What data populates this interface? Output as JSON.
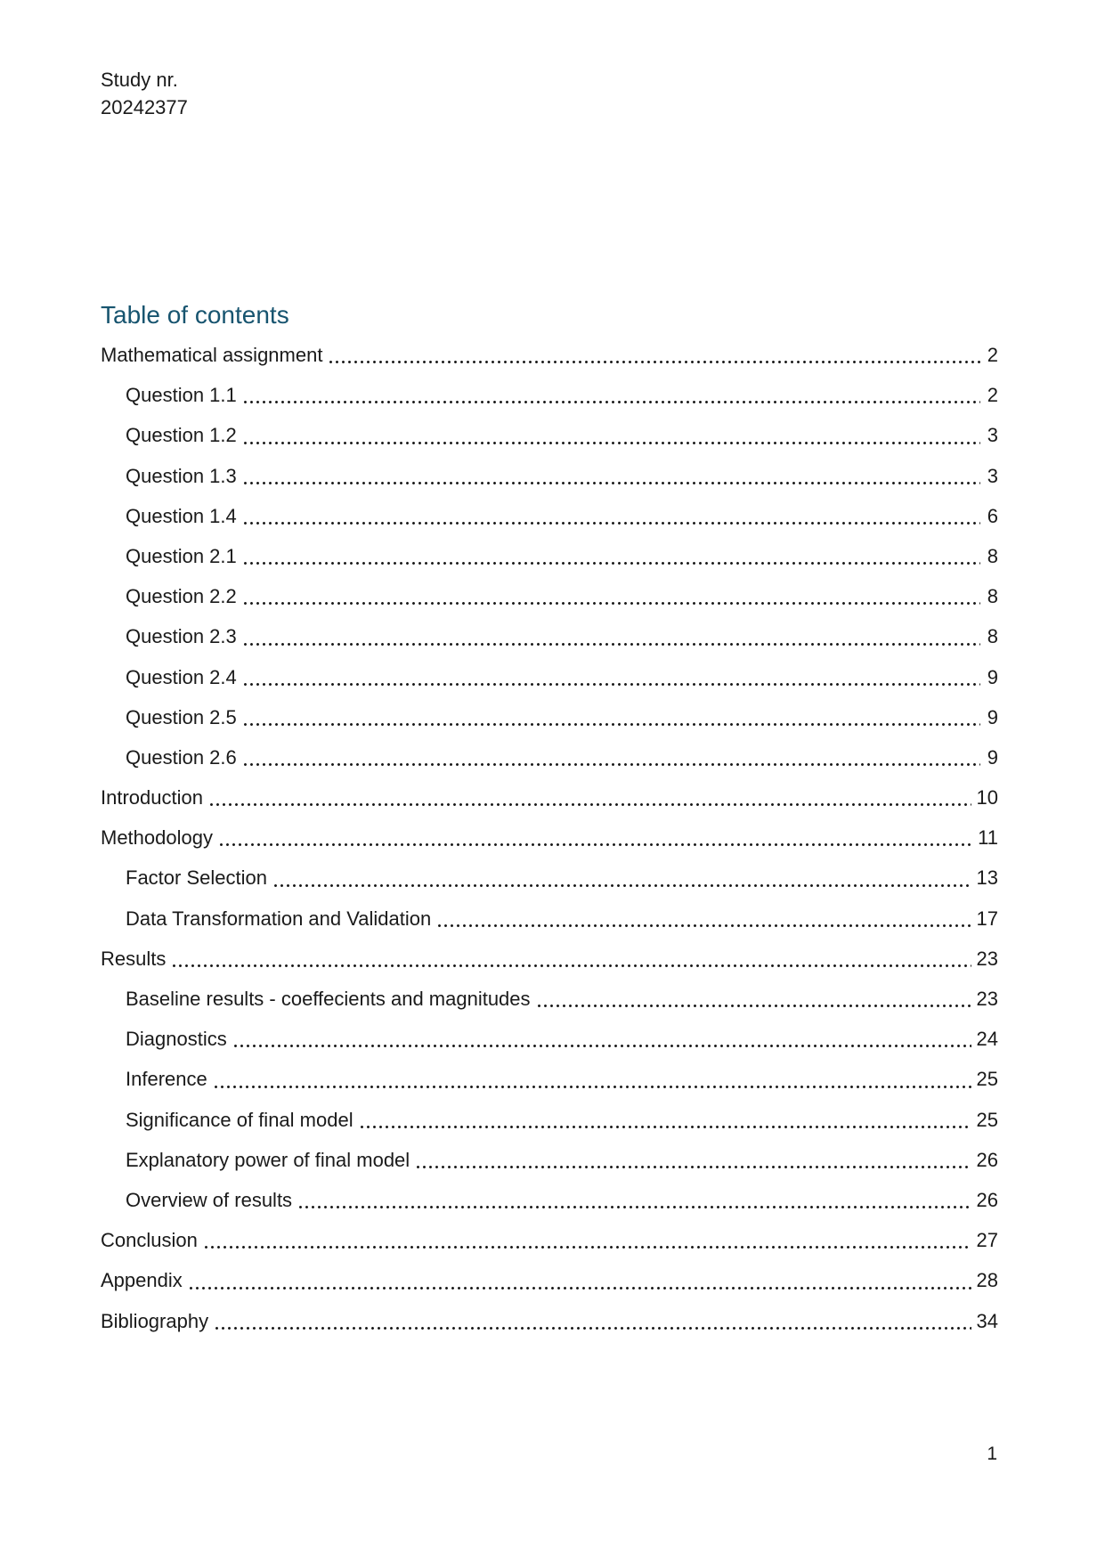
{
  "accent_color": "#17546F",
  "text_color": "#1a1a1a",
  "header": {
    "line1": "Study nr.",
    "line2": "20242377"
  },
  "toc": {
    "title": "Table of contents",
    "entries": [
      {
        "label": "Mathematical assignment",
        "page": "2",
        "level": 0
      },
      {
        "label": "Question 1.1",
        "page": "2",
        "level": 1
      },
      {
        "label": "Question 1.2",
        "page": "3",
        "level": 1
      },
      {
        "label": "Question 1.3",
        "page": "3",
        "level": 1
      },
      {
        "label": "Question 1.4",
        "page": "6",
        "level": 1
      },
      {
        "label": "Question 2.1",
        "page": "8",
        "level": 1
      },
      {
        "label": "Question 2.2",
        "page": "8",
        "level": 1
      },
      {
        "label": "Question 2.3",
        "page": "8",
        "level": 1
      },
      {
        "label": "Question 2.4",
        "page": "9",
        "level": 1
      },
      {
        "label": "Question 2.5",
        "page": "9",
        "level": 1
      },
      {
        "label": "Question 2.6",
        "page": "9",
        "level": 1
      },
      {
        "label": "Introduction",
        "page": "10",
        "level": 0
      },
      {
        "label": "Methodology",
        "page": "11",
        "level": 0
      },
      {
        "label": "Factor Selection",
        "page": "13",
        "level": 1
      },
      {
        "label": "Data Transformation and Validation",
        "page": "17",
        "level": 1
      },
      {
        "label": "Results",
        "page": "23",
        "level": 0
      },
      {
        "label": "Baseline results - coeffecients and magnitudes",
        "page": "23",
        "level": 1
      },
      {
        "label": "Diagnostics",
        "page": "24",
        "level": 1
      },
      {
        "label": "Inference",
        "page": "25",
        "level": 1
      },
      {
        "label": "Significance of final model",
        "page": "25",
        "level": 1
      },
      {
        "label": "Explanatory power of final model",
        "page": "26",
        "level": 1
      },
      {
        "label": "Overview of results",
        "page": "26",
        "level": 1
      },
      {
        "label": "Conclusion",
        "page": "27",
        "level": 0
      },
      {
        "label": "Appendix",
        "page": "28",
        "level": 0
      },
      {
        "label": "Bibliography",
        "page": "34",
        "level": 0
      }
    ]
  },
  "footer": {
    "page_number": "1"
  }
}
